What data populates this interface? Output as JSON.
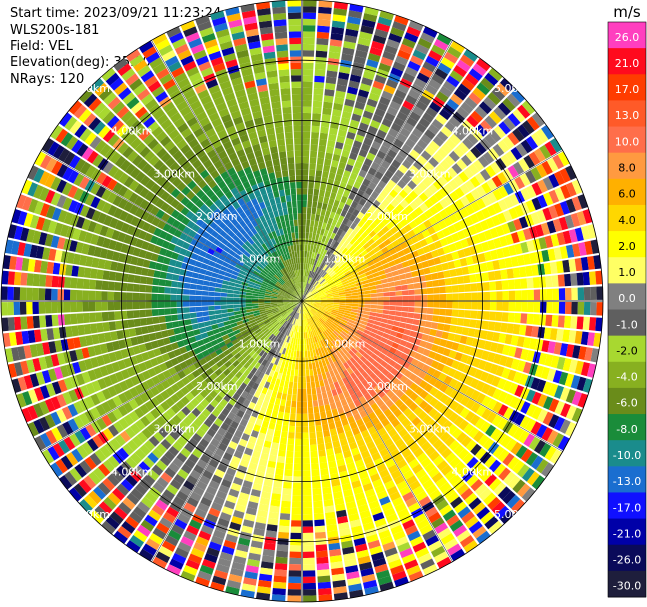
{
  "info": {
    "start_time": "Start time: 2023/09/21 11:23:24",
    "station": "WLS200s-181",
    "field": "Field: VEL",
    "elevation": "Elevation(deg): 35.30",
    "nrays": "NRays: 120"
  },
  "chart_data": {
    "type": "heatmap",
    "projection": "polar-ppi",
    "field": "VEL",
    "n_rays": 120,
    "range_rings_km": [
      1,
      2,
      3,
      4,
      5
    ],
    "ring_labels": [
      "1.00km",
      "2.00km",
      "3.00km",
      "4.00km",
      "5.00km"
    ],
    "max_range_km": 5,
    "colorbar": {
      "unit": "m/s",
      "ticks": [
        "26.0",
        "21.0",
        "17.0",
        "13.0",
        "10.0",
        "8.0",
        "6.0",
        "4.0",
        "2.0",
        "1.0",
        "0.0",
        "-1.0",
        "-2.0",
        "-4.0",
        "-6.0",
        "-8.0",
        "-10.0",
        "-13.0",
        "-17.0",
        "-21.0",
        "-26.0",
        "-30.0"
      ],
      "colors": [
        "#ff3fbf",
        "#ff0a1e",
        "#ff3c00",
        "#ff5a28",
        "#ff6e4a",
        "#ff9a40",
        "#ffb000",
        "#ffd700",
        "#ffff00",
        "#ffff64",
        "#808080",
        "#5f5f5f",
        "#a8d830",
        "#88b020",
        "#6a8c1a",
        "#1a8c3a",
        "#1a8c8c",
        "#1a6ed0",
        "#1010ff",
        "#0000a8",
        "#0a0a5a",
        "#1e1e3c"
      ]
    },
    "pattern": "velocity dipole: receding (positive, red/orange) flow to the east, approaching (negative, green/blue) flow to the west; noisy far ranges",
    "zero_line_azimuth_deg": 30
  }
}
